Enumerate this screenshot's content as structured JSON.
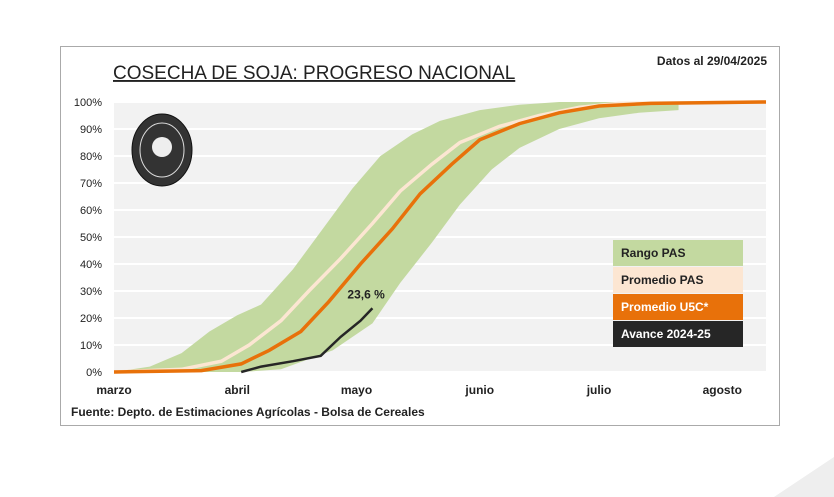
{
  "chart_data": {
    "type": "area",
    "title": "COSECHA DE SOJA: PROGRESO NACIONAL",
    "subtitle": "Datos al 29/04/2025",
    "source": "Fuente: Depto. de Estimaciones Agrícolas - Bolsa de Cereales",
    "logo_text": "Bolsa de Cereales",
    "x_unit": "days since March 1",
    "xlim": [
      0,
      164
    ],
    "ylim": [
      0,
      100
    ],
    "x_ticks": [
      {
        "label": "marzo",
        "x": 0
      },
      {
        "label": "abril",
        "x": 31
      },
      {
        "label": "mayo",
        "x": 61
      },
      {
        "label": "junio",
        "x": 92
      },
      {
        "label": "julio",
        "x": 122
      },
      {
        "label": "agosto",
        "x": 153
      }
    ],
    "y_ticks": [
      0,
      10,
      20,
      30,
      40,
      50,
      60,
      70,
      80,
      90,
      100
    ],
    "y_tick_labels": [
      "0%",
      "10%",
      "20%",
      "30%",
      "40%",
      "50%",
      "60%",
      "70%",
      "80%",
      "90%",
      "100%"
    ],
    "annotation": "23,6 %",
    "legend_placement": "right",
    "series": [
      {
        "name": "Rango PAS",
        "color": "#c3d9a0",
        "upper": [
          [
            0,
            0
          ],
          [
            9,
            2
          ],
          [
            17,
            7
          ],
          [
            24,
            15
          ],
          [
            31,
            21
          ],
          [
            37,
            25
          ],
          [
            45,
            38
          ],
          [
            52,
            52
          ],
          [
            60,
            68
          ],
          [
            67,
            80
          ],
          [
            75,
            88
          ],
          [
            82,
            93
          ],
          [
            92,
            97
          ],
          [
            102,
            99
          ],
          [
            112,
            100
          ],
          [
            142,
            100
          ]
        ],
        "lower": [
          [
            0,
            0
          ],
          [
            32,
            0
          ],
          [
            42,
            1
          ],
          [
            55,
            8
          ],
          [
            65,
            18
          ],
          [
            72,
            33
          ],
          [
            80,
            48
          ],
          [
            87,
            62
          ],
          [
            95,
            75
          ],
          [
            102,
            83
          ],
          [
            112,
            90
          ],
          [
            122,
            94
          ],
          [
            132,
            96
          ],
          [
            142,
            97
          ]
        ]
      },
      {
        "name": "Promedio PAS",
        "color": "#fce6d2",
        "points": [
          [
            0,
            0
          ],
          [
            17,
            1
          ],
          [
            27,
            4
          ],
          [
            34,
            10
          ],
          [
            42,
            19
          ],
          [
            49,
            30
          ],
          [
            57,
            42
          ],
          [
            65,
            55
          ],
          [
            72,
            67
          ],
          [
            80,
            77
          ],
          [
            87,
            85
          ],
          [
            97,
            91
          ],
          [
            107,
            95
          ],
          [
            117,
            98
          ],
          [
            127,
            99.5
          ],
          [
            164,
            100
          ]
        ]
      },
      {
        "name": "Promedio  U5C*",
        "color": "#e8710a",
        "points": [
          [
            0,
            0
          ],
          [
            22,
            0.5
          ],
          [
            32,
            3
          ],
          [
            39,
            8
          ],
          [
            47,
            15
          ],
          [
            54,
            26
          ],
          [
            62,
            40
          ],
          [
            70,
            53
          ],
          [
            77,
            66
          ],
          [
            85,
            77
          ],
          [
            92,
            86
          ],
          [
            102,
            92
          ],
          [
            112,
            96
          ],
          [
            122,
            98.5
          ],
          [
            135,
            99.5
          ],
          [
            164,
            100
          ]
        ]
      },
      {
        "name": "Avance 2024-25",
        "color": "#262626",
        "points": [
          [
            32,
            0
          ],
          [
            37,
            2
          ],
          [
            45,
            4
          ],
          [
            52,
            6
          ],
          [
            57,
            13
          ],
          [
            62,
            19
          ],
          [
            65,
            23.6
          ]
        ]
      }
    ]
  }
}
